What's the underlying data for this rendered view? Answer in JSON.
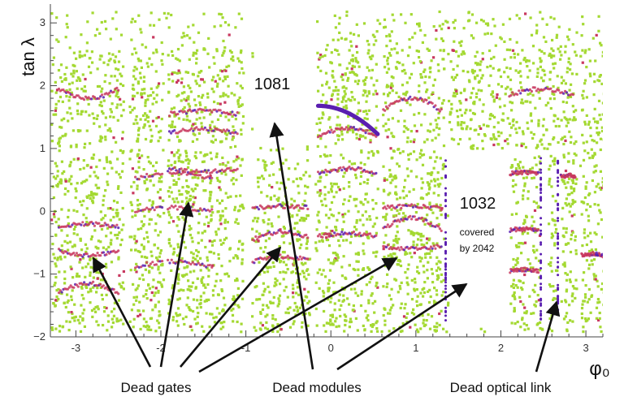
{
  "chart_data": {
    "type": "scatter",
    "title": "",
    "xlabel": "φ₀",
    "ylabel": "tan λ",
    "xlim": [
      -3.3,
      3.2
    ],
    "ylim": [
      -2.0,
      3.3
    ],
    "xticks": [
      "-3",
      "-2",
      "-1",
      "0",
      "1",
      "2",
      "3"
    ],
    "yticks": [
      "3",
      "2",
      "1",
      "0",
      "−1",
      "−2"
    ],
    "grid": false,
    "legend": "none",
    "colors": {
      "hits": "#a4d932",
      "band": "#c8385f",
      "dense": "#5a1fb0",
      "arrow": "#111111"
    },
    "gaps": [
      {
        "x": [
          -2.45,
          -2.38
        ],
        "y": [
          -1.85,
          3.0
        ]
      },
      {
        "x": [
          -1.98,
          -1.93
        ],
        "y": [
          -1.85,
          3.0
        ]
      },
      {
        "x": [
          -1.04,
          -0.94
        ],
        "y": [
          -1.85,
          3.0
        ]
      },
      {
        "x": [
          -0.26,
          -0.2
        ],
        "y": [
          -1.85,
          3.0
        ]
      },
      {
        "x": [
          0.54,
          0.6
        ],
        "y": [
          -1.85,
          3.0
        ]
      },
      {
        "x": [
          1.32,
          1.36
        ],
        "y": [
          -1.85,
          3.0
        ]
      },
      {
        "x": [
          2.45,
          2.55
        ],
        "y": [
          -1.85,
          0.95
        ]
      },
      {
        "x": [
          2.65,
          2.7
        ],
        "y": [
          -1.85,
          0.95
        ]
      },
      {
        "x": [
          2.88,
          2.92
        ],
        "y": [
          -1.85,
          3.0
        ]
      }
    ],
    "dead_regions": [
      {
        "label": "1081",
        "x": [
          -0.93,
          -0.18
        ],
        "y": [
          1.05,
          3.3
        ]
      },
      {
        "label": "1032",
        "x": [
          1.37,
          2.1
        ],
        "y": [
          -1.85,
          0.95
        ]
      }
    ],
    "annotations": {
      "module_1081": "1081",
      "module_1032": "1032",
      "covered_note_line1": "covered",
      "covered_note_line2": "by 2042",
      "dead_gates": "Dead gates",
      "dead_modules": "Dead modules",
      "dead_optical_link": "Dead optical link"
    }
  }
}
